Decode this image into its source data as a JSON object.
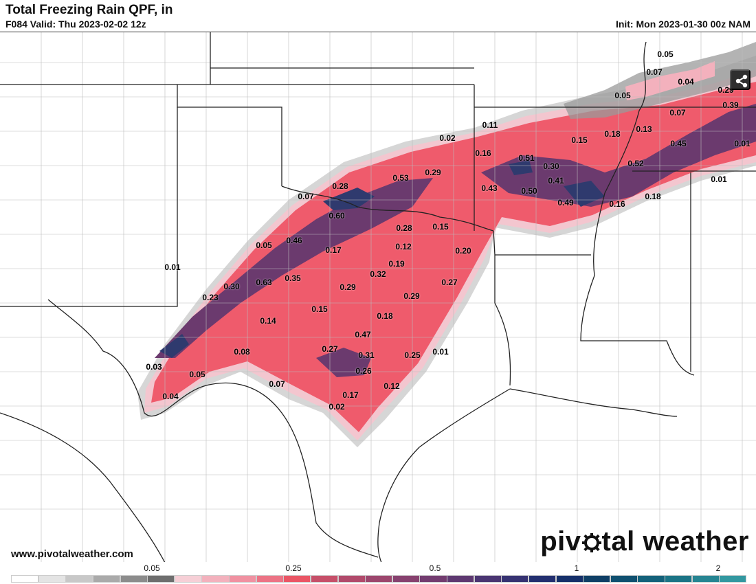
{
  "header": {
    "title": "Total Freezing Rain QPF, in",
    "valid": "F084 Valid: Thu 2023-02-02 12z",
    "init": "Init: Mon 2023-01-30 00z NAM"
  },
  "footer": {
    "website": "www.pivotalweather.com",
    "logo_left": "piv",
    "logo_right": "tal weather"
  },
  "share_icon": "share-icon",
  "colors": {
    "light": "#f3c6cf",
    "mid": "#ef5b6c",
    "deep": "#6b3a6e",
    "darkest": "#2f3a6e"
  },
  "value_labels": [
    {
      "text": "0.05"
    },
    {
      "text": "0.07"
    },
    {
      "text": "0.04"
    },
    {
      "text": "0.05"
    },
    {
      "text": "0.29"
    },
    {
      "text": "0.39"
    },
    {
      "text": "0.07"
    },
    {
      "text": "0.11"
    },
    {
      "text": "0.02"
    },
    {
      "text": "0.15"
    },
    {
      "text": "0.18"
    },
    {
      "text": "0.13"
    },
    {
      "text": "0.45"
    },
    {
      "text": "0.01"
    },
    {
      "text": "0.16"
    },
    {
      "text": "0.51"
    },
    {
      "text": "0.30"
    },
    {
      "text": "0.52"
    },
    {
      "text": "0.28"
    },
    {
      "text": "0.53"
    },
    {
      "text": "0.29"
    },
    {
      "text": "0.43"
    },
    {
      "text": "0.50"
    },
    {
      "text": "0.41"
    },
    {
      "text": "0.01"
    },
    {
      "text": "0.07"
    },
    {
      "text": "0.49"
    },
    {
      "text": "0.16"
    },
    {
      "text": "0.18"
    },
    {
      "text": "0.60"
    },
    {
      "text": "0.28"
    },
    {
      "text": "0.15"
    },
    {
      "text": "0.05"
    },
    {
      "text": "0.46"
    },
    {
      "text": "0.17"
    },
    {
      "text": "0.12"
    },
    {
      "text": "0.20"
    },
    {
      "text": "0.01"
    },
    {
      "text": "0.19"
    },
    {
      "text": "0.30"
    },
    {
      "text": "0.63"
    },
    {
      "text": "0.35"
    },
    {
      "text": "0.32"
    },
    {
      "text": "0.27"
    },
    {
      "text": "0.23"
    },
    {
      "text": "0.29"
    },
    {
      "text": "0.29"
    },
    {
      "text": "0.15"
    },
    {
      "text": "0.14"
    },
    {
      "text": "0.18"
    },
    {
      "text": "0.47"
    },
    {
      "text": "0.08"
    },
    {
      "text": "0.27"
    },
    {
      "text": "0.31"
    },
    {
      "text": "0.25"
    },
    {
      "text": "0.01"
    },
    {
      "text": "0.03"
    },
    {
      "text": "0.26"
    },
    {
      "text": "0.05"
    },
    {
      "text": "0.07"
    },
    {
      "text": "0.12"
    },
    {
      "text": "0.17"
    },
    {
      "text": "0.04"
    },
    {
      "text": "0.02"
    }
  ],
  "colorbar": {
    "ticks": [
      {
        "label": "0.05"
      },
      {
        "label": "0.25"
      },
      {
        "label": "0.5"
      },
      {
        "label": "1"
      },
      {
        "label": "2"
      }
    ],
    "colors": [
      "#ffffff",
      "#e4e4e4",
      "#c8c8c8",
      "#aaaaaa",
      "#8c8c8c",
      "#6e6e6e",
      "#f6cfd6",
      "#f3b1bd",
      "#f091a1",
      "#ec7385",
      "#ea5565",
      "#c64f69",
      "#b14a6b",
      "#9c466d",
      "#87416f",
      "#733c70",
      "#5e3871",
      "#4a3572",
      "#363272",
      "#232f70",
      "#15306a",
      "#0f3f66",
      "#0f5070",
      "#13617a",
      "#1b7486",
      "#268592",
      "#3298a0"
    ]
  }
}
